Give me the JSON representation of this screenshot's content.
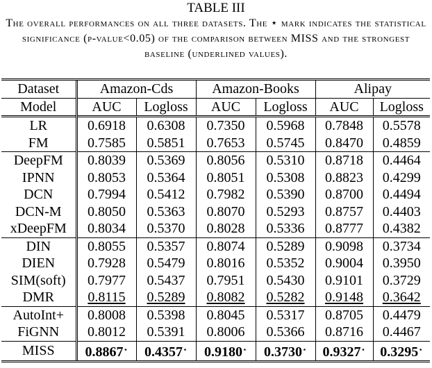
{
  "caption": {
    "label": "TABLE III",
    "text": "The overall performances on all three datasets. The ⋆ mark indicates the statistical significance (p-value<0.05) of the comparison between MISS and the strongest baseline (underlined values)."
  },
  "header": {
    "dataset_label": "Dataset",
    "model_label": "Model",
    "datasets": [
      "Amazon-Cds",
      "Amazon-Books",
      "Alipay"
    ],
    "metrics": [
      "AUC",
      "Logloss",
      "AUC",
      "Logloss",
      "AUC",
      "Logloss"
    ]
  },
  "star": "⋆",
  "groups": [
    [
      {
        "model": "LR",
        "values": [
          "0.6918",
          "0.6308",
          "0.7350",
          "0.5968",
          "0.7848",
          "0.5578"
        ]
      },
      {
        "model": "FM",
        "values": [
          "0.7585",
          "0.5851",
          "0.7653",
          "0.5745",
          "0.8470",
          "0.4859"
        ]
      }
    ],
    [
      {
        "model": "DeepFM",
        "values": [
          "0.8039",
          "0.5369",
          "0.8056",
          "0.5310",
          "0.8718",
          "0.4464"
        ]
      },
      {
        "model": "IPNN",
        "values": [
          "0.8053",
          "0.5364",
          "0.8051",
          "0.5308",
          "0.8823",
          "0.4299"
        ]
      },
      {
        "model": "DCN",
        "values": [
          "0.7994",
          "0.5412",
          "0.7982",
          "0.5390",
          "0.8700",
          "0.4494"
        ]
      },
      {
        "model": "DCN-M",
        "values": [
          "0.8050",
          "0.5363",
          "0.8070",
          "0.5293",
          "0.8757",
          "0.4403"
        ]
      },
      {
        "model": "xDeepFM",
        "values": [
          "0.8034",
          "0.5370",
          "0.8028",
          "0.5336",
          "0.8777",
          "0.4382"
        ]
      }
    ],
    [
      {
        "model": "DIN",
        "values": [
          "0.8055",
          "0.5357",
          "0.8074",
          "0.5289",
          "0.9098",
          "0.3734"
        ]
      },
      {
        "model": "DIEN",
        "values": [
          "0.7928",
          "0.5479",
          "0.8016",
          "0.5352",
          "0.9004",
          "0.3950"
        ]
      },
      {
        "model": "SIM(soft)",
        "values": [
          "0.7977",
          "0.5437",
          "0.7951",
          "0.5430",
          "0.9101",
          "0.3729"
        ]
      },
      {
        "model": "DMR",
        "values": [
          "0.8115",
          "0.5289",
          "0.8082",
          "0.5282",
          "0.9148",
          "0.3642"
        ],
        "underline": [
          true,
          true,
          true,
          true,
          true,
          true
        ]
      }
    ],
    [
      {
        "model": "AutoInt+",
        "values": [
          "0.8008",
          "0.5398",
          "0.8045",
          "0.5317",
          "0.8705",
          "0.4479"
        ]
      },
      {
        "model": "FiGNN",
        "values": [
          "0.8012",
          "0.5391",
          "0.8006",
          "0.5366",
          "0.8716",
          "0.4467"
        ]
      }
    ],
    [
      {
        "model": "MISS",
        "values": [
          "0.8867",
          "0.4357",
          "0.9180",
          "0.3730",
          "0.9327",
          "0.3295"
        ],
        "bold": true,
        "star": true
      }
    ]
  ]
}
